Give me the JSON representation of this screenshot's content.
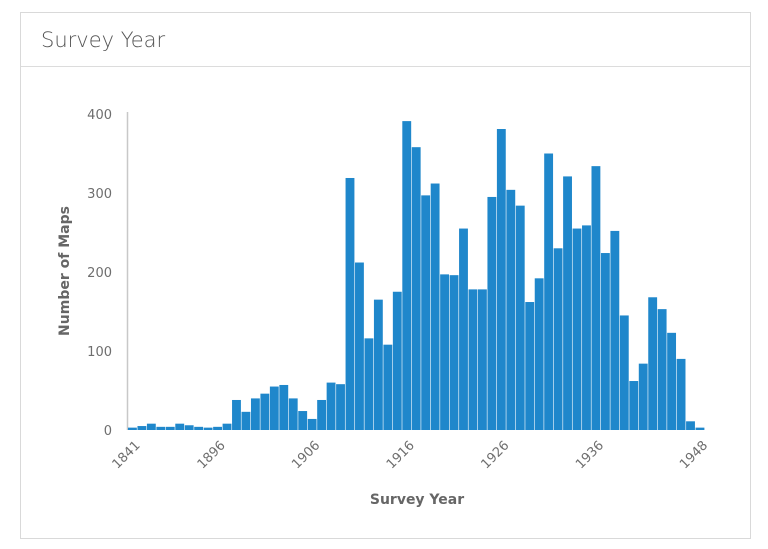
{
  "panel": {
    "title": "Survey Year"
  },
  "chart_data": {
    "type": "bar",
    "title": "",
    "xlabel": "Survey Year",
    "ylabel": "Number of Maps",
    "ylim": [
      0,
      400
    ],
    "y_ticks": [
      0,
      100,
      200,
      300,
      400
    ],
    "x_tick_labels": [
      {
        "bar_index": 0,
        "label": "1841"
      },
      {
        "bar_index": 9,
        "label": "1896"
      },
      {
        "bar_index": 19,
        "label": "1906"
      },
      {
        "bar_index": 29,
        "label": "1916"
      },
      {
        "bar_index": 39,
        "label": "1926"
      },
      {
        "bar_index": 49,
        "label": "1936"
      },
      {
        "bar_index": 60,
        "label": "1948"
      }
    ],
    "values": [
      3,
      5,
      8,
      4,
      4,
      8,
      6,
      4,
      3,
      4,
      8,
      38,
      23,
      40,
      46,
      55,
      57,
      40,
      24,
      14,
      38,
      60,
      58,
      319,
      212,
      116,
      165,
      108,
      175,
      391,
      358,
      297,
      312,
      197,
      196,
      255,
      178,
      178,
      295,
      381,
      304,
      284,
      162,
      192,
      350,
      230,
      321,
      255,
      259,
      334,
      224,
      252,
      145,
      62,
      84,
      168,
      153,
      123,
      90,
      11,
      3
    ],
    "grid": false,
    "legend": "none",
    "bar_color": "#1f87cb"
  }
}
